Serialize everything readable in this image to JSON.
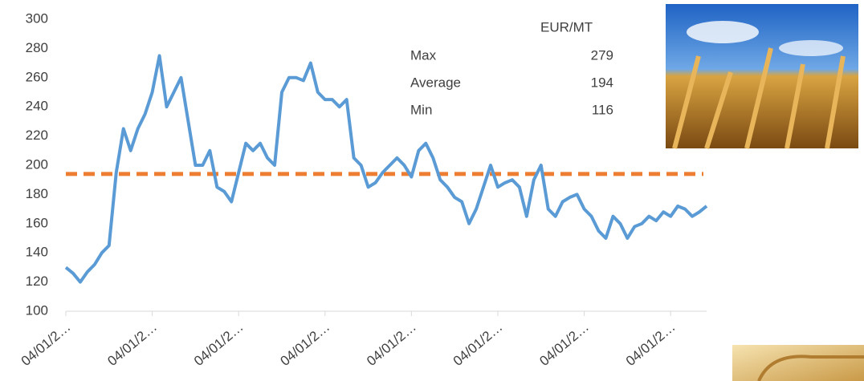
{
  "chart_data": {
    "type": "line",
    "categories": [
      "04/01/2…",
      null,
      null,
      null,
      null,
      null,
      null,
      null,
      null,
      null,
      null,
      null,
      "04/01/2…",
      null,
      null,
      null,
      null,
      null,
      null,
      null,
      null,
      null,
      null,
      null,
      "04/01/2…",
      null,
      null,
      null,
      null,
      null,
      null,
      null,
      null,
      null,
      null,
      null,
      "04/01/2…",
      null,
      null,
      null,
      null,
      null,
      null,
      null,
      null,
      null,
      null,
      null,
      "04/01/2…",
      null,
      null,
      null,
      null,
      null,
      null,
      null,
      null,
      null,
      null,
      null,
      "04/01/2…",
      null,
      null,
      null,
      null,
      null,
      null,
      null,
      null,
      null,
      null,
      null,
      "04/01/2…",
      null,
      null,
      null,
      null,
      null,
      null,
      null,
      null,
      null,
      null,
      null,
      "04/01/2…",
      null,
      null,
      null,
      null,
      null
    ],
    "series": [
      {
        "color": "#5b9bd5",
        "values": [
          130,
          126,
          120,
          127,
          132,
          140,
          145,
          195,
          225,
          210,
          225,
          235,
          250,
          275,
          240,
          250,
          260,
          230,
          200,
          200,
          210,
          185,
          182,
          175,
          195,
          215,
          210,
          215,
          205,
          200,
          250,
          260,
          260,
          258,
          270,
          250,
          245,
          245,
          240,
          245,
          205,
          200,
          185,
          188,
          195,
          200,
          205,
          200,
          192,
          210,
          215,
          205,
          190,
          185,
          178,
          175,
          160,
          170,
          185,
          200,
          185,
          188,
          190,
          185,
          165,
          190,
          200,
          170,
          165,
          175,
          178,
          180,
          170,
          165,
          155,
          150,
          165,
          160,
          150,
          158,
          160,
          165,
          162,
          168,
          165,
          172,
          170,
          165,
          168,
          172
        ]
      }
    ],
    "ylim": [
      100,
      300
    ],
    "yticks": [
      100,
      120,
      140,
      160,
      180,
      200,
      220,
      240,
      260,
      280,
      300
    ],
    "average_color": "#ed7d31",
    "stats_header": "EUR/MT",
    "stats": [
      [
        "Max",
        279
      ],
      [
        "Average",
        194
      ],
      [
        "Min",
        116
      ]
    ]
  }
}
